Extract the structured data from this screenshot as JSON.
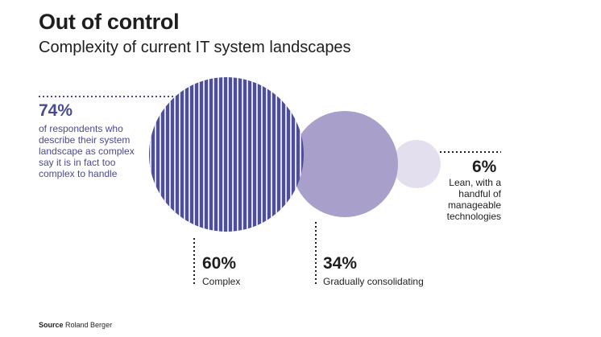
{
  "header": {
    "title": "Out of control",
    "subtitle": "Complexity of current IT system landscapes"
  },
  "callout": {
    "percent": "74%",
    "text": "of respondents who describe their system landscape as complex say it is in fact too complex to handle"
  },
  "labels": {
    "complex_percent": "60%",
    "complex_label": "Complex",
    "gradual_percent": "34%",
    "gradual_label": "Gradually consolidating",
    "lean_percent": "6%",
    "lean_label_1": "Lean, with a",
    "lean_label_2": "handful of",
    "lean_label_3": "manageable",
    "lean_label_4": "technologies"
  },
  "source": {
    "prefix": "Source",
    "text": "Roland Berger"
  },
  "colors": {
    "complex": "#4f4f99",
    "gradual": "#a89fcb",
    "lean": "#e3dfee",
    "text_navy": "#4a4a8f",
    "text_dark": "#1e1e1e"
  },
  "chart_data": {
    "type": "bubble",
    "series": [
      {
        "name": "Complex",
        "value": 60,
        "color": "#4f4f99"
      },
      {
        "name": "Gradually consolidating",
        "value": 34,
        "color": "#a89fcb"
      },
      {
        "name": "Lean, with a handful of manageable technologies",
        "value": 6,
        "color": "#e3dfee"
      }
    ],
    "annotation": {
      "value": 74,
      "text": "of respondents who describe their system landscape as complex say it is in fact too complex to handle"
    }
  }
}
